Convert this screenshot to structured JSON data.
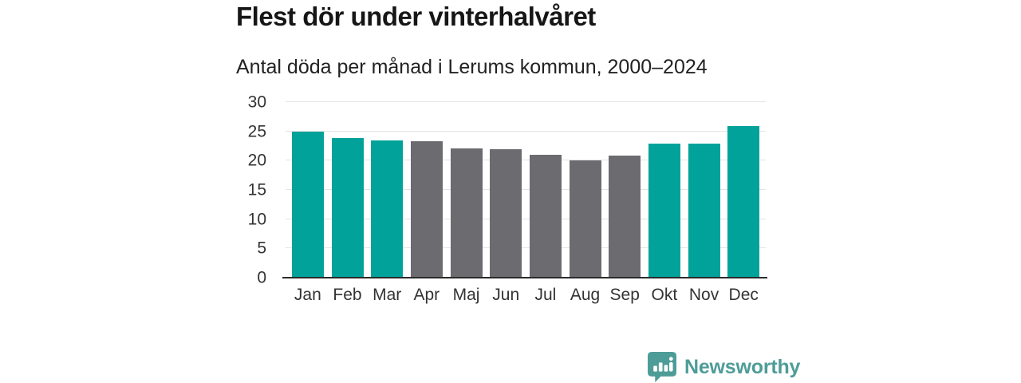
{
  "page": {
    "background": "#ffffff"
  },
  "header": {
    "title": "Flest dör under vinterhalvåret",
    "subtitle": "Antal döda per månad i Lerums kommun, 2000–2024"
  },
  "chart_data": {
    "type": "bar",
    "title": "Flest dör under vinterhalvåret",
    "subtitle": "Antal döda per månad i Lerums kommun, 2000–2024",
    "categories": [
      "Jan",
      "Feb",
      "Mar",
      "Apr",
      "Maj",
      "Jun",
      "Jul",
      "Aug",
      "Sep",
      "Okt",
      "Nov",
      "Dec"
    ],
    "values": [
      25.0,
      23.9,
      23.5,
      23.3,
      22.1,
      21.9,
      21.0,
      20.1,
      20.9,
      22.9,
      22.9,
      25.9
    ],
    "bar_colors": [
      "#00a29a",
      "#00a29a",
      "#00a29a",
      "#6c6b70",
      "#6c6b70",
      "#6c6b70",
      "#6c6b70",
      "#6c6b70",
      "#6c6b70",
      "#00a29a",
      "#00a29a",
      "#00a29a"
    ],
    "highlight_color": "#00a29a",
    "muted_color": "#6c6b70",
    "y_ticks": [
      0,
      5,
      10,
      15,
      20,
      25,
      30
    ],
    "ylim": [
      0,
      30
    ],
    "xlabel": "",
    "ylabel": "",
    "grid": "horizontal-light-gray",
    "gridline_color": "#e4e4e4",
    "axis_line_color": "#2b2b2b",
    "tick_label_color": "#333333",
    "legend": "none"
  },
  "footer": {
    "brand": "Newsworthy",
    "brand_color": "#4d9c98",
    "logo_icon": "newsworthy-speech-bubble-barchart-icon"
  }
}
